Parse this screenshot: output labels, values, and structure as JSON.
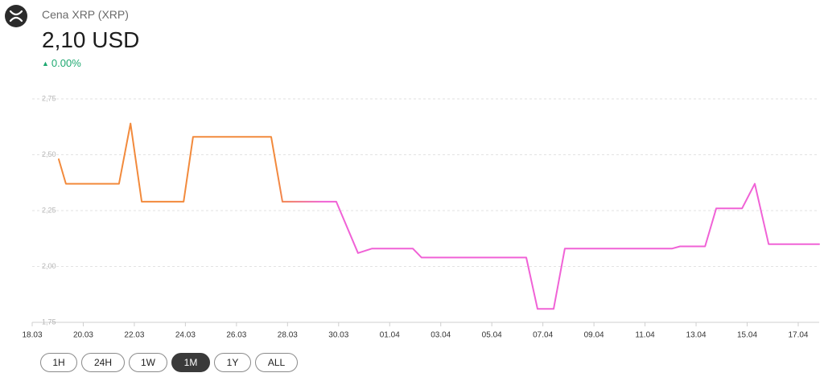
{
  "header": {
    "title": "Cena XRP (XRP)",
    "price": "2,10 USD",
    "change": "0.00%"
  },
  "buttons": [
    "1H",
    "24H",
    "1W",
    "1M",
    "1Y",
    "ALL"
  ],
  "chart_data": {
    "type": "line",
    "x": [
      1.04,
      1.32,
      3.4,
      3.85,
      4.29,
      5.93,
      6.3,
      9.36,
      9.8,
      11.91,
      12.76,
      13.3,
      14.91,
      15.25,
      19.35,
      19.79,
      20.42,
      20.86,
      25.05,
      25.37,
      26.35,
      26.79,
      27.8,
      28.3,
      28.84,
      30.82
    ],
    "values": [
      2.48,
      2.37,
      2.37,
      2.64,
      2.29,
      2.29,
      2.58,
      2.58,
      2.29,
      2.29,
      2.06,
      2.08,
      2.08,
      2.04,
      2.04,
      1.81,
      1.81,
      2.08,
      2.08,
      2.09,
      2.09,
      2.26,
      2.26,
      2.37,
      2.1,
      2.1
    ],
    "color": [
      "#f28a3c",
      "#f062d6"
    ],
    "xlim": [
      0,
      30.82
    ],
    "xticks": [
      {
        "value": 0,
        "label": "18.03"
      },
      {
        "value": 2,
        "label": "20.03"
      },
      {
        "value": 4,
        "label": "22.03"
      },
      {
        "value": 6,
        "label": "24.03"
      },
      {
        "value": 8,
        "label": "26.03"
      },
      {
        "value": 10,
        "label": "28.03"
      },
      {
        "value": 12,
        "label": "30.03"
      },
      {
        "value": 14,
        "label": "01.04"
      },
      {
        "value": 16,
        "label": "03.04"
      },
      {
        "value": 18,
        "label": "05.04"
      },
      {
        "value": 20,
        "label": "07.04"
      },
      {
        "value": 22,
        "label": "09.04"
      },
      {
        "value": 24,
        "label": "11.04"
      },
      {
        "value": 26,
        "label": "13.04"
      },
      {
        "value": 28,
        "label": "15.04"
      },
      {
        "value": 30,
        "label": "17.04"
      }
    ],
    "ylim": [
      1.75,
      2.75
    ],
    "yticks": [
      {
        "value": 1.75,
        "label": "1,75"
      },
      {
        "value": 2.0,
        "label": "2,00"
      },
      {
        "value": 2.25,
        "label": "2,25"
      },
      {
        "value": 2.5,
        "label": "2,50"
      },
      {
        "value": 2.75,
        "label": "2,75"
      }
    ],
    "grid": true
  }
}
